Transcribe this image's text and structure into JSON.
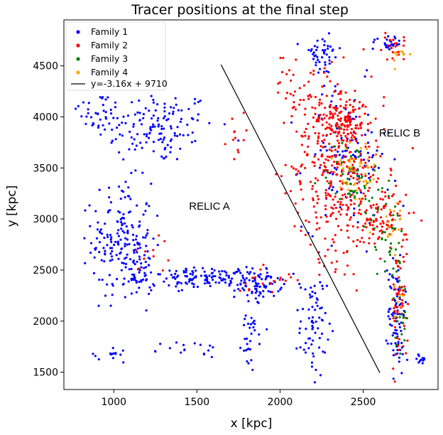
{
  "chart_data": {
    "type": "scatter",
    "title": "Tracer positions at the final step",
    "xlabel": "x [kpc]",
    "ylabel": "y [kpc]",
    "xlim": [
      700,
      2950
    ],
    "ylim": [
      1330,
      4950
    ],
    "xticks": [
      1000,
      1500,
      2000,
      2500
    ],
    "yticks": [
      1500,
      2000,
      2500,
      3000,
      3500,
      4000,
      4500
    ],
    "grid": false,
    "legend_position": "top-left",
    "series": [
      {
        "name": "Family 1",
        "color": "#0000ff"
      },
      {
        "name": "Family 2",
        "color": "#ff0000"
      },
      {
        "name": "Family 3",
        "color": "#008000"
      },
      {
        "name": "Family 4",
        "color": "#ffa500"
      }
    ],
    "fit_line": {
      "label": "y=-3.16x + 9710",
      "slope": -3.16,
      "intercept": 9710,
      "x_range": [
        1645,
        2600
      ],
      "color": "#000000"
    },
    "annotations": [
      {
        "text": "RELIC A",
        "x": 1560,
        "y": 3120
      },
      {
        "text": "RELIC B",
        "x": 2660,
        "y": 3810
      }
    ],
    "clusters": [
      {
        "series": 0,
        "n": 140,
        "cx": 1250,
        "cy": 3900,
        "sx": 180,
        "sy": 180
      },
      {
        "series": 0,
        "n": 30,
        "cx": 900,
        "cy": 4050,
        "sx": 60,
        "sy": 100
      },
      {
        "series": 0,
        "n": 180,
        "cx": 1050,
        "cy": 2800,
        "sx": 90,
        "sy": 280
      },
      {
        "series": 0,
        "n": 40,
        "cx": 1150,
        "cy": 2450,
        "sx": 50,
        "sy": 120
      },
      {
        "series": 0,
        "n": 120,
        "cx": 1550,
        "cy": 2420,
        "sx": 170,
        "sy": 50
      },
      {
        "series": 0,
        "n": 70,
        "cx": 1870,
        "cy": 2370,
        "sx": 70,
        "sy": 70
      },
      {
        "series": 0,
        "n": 35,
        "cx": 1830,
        "cy": 1950,
        "sx": 30,
        "sy": 220
      },
      {
        "series": 0,
        "n": 70,
        "cx": 2200,
        "cy": 1950,
        "sx": 40,
        "sy": 250
      },
      {
        "series": 0,
        "n": 45,
        "cx": 2250,
        "cy": 4600,
        "sx": 60,
        "sy": 100
      },
      {
        "series": 0,
        "n": 120,
        "cx": 2400,
        "cy": 3600,
        "sx": 130,
        "sy": 350
      },
      {
        "series": 0,
        "n": 80,
        "cx": 2700,
        "cy": 2100,
        "sx": 25,
        "sy": 300
      },
      {
        "series": 0,
        "n": 25,
        "cx": 2650,
        "cy": 4730,
        "sx": 50,
        "sy": 40
      },
      {
        "series": 0,
        "n": 20,
        "cx": 1450,
        "cy": 1720,
        "sx": 150,
        "sy": 40
      },
      {
        "series": 0,
        "n": 12,
        "cx": 1000,
        "cy": 1670,
        "sx": 40,
        "sy": 40
      },
      {
        "series": 0,
        "n": 15,
        "cx": 2800,
        "cy": 1620,
        "sx": 50,
        "sy": 40
      },
      {
        "series": 1,
        "n": 350,
        "cx": 2350,
        "cy": 3500,
        "sx": 140,
        "sy": 450
      },
      {
        "series": 1,
        "n": 120,
        "cx": 2350,
        "cy": 3950,
        "sx": 90,
        "sy": 120
      },
      {
        "series": 1,
        "n": 90,
        "cx": 2620,
        "cy": 3000,
        "sx": 80,
        "sy": 180
      },
      {
        "series": 1,
        "n": 60,
        "cx": 2720,
        "cy": 2150,
        "sx": 25,
        "sy": 280
      },
      {
        "series": 1,
        "n": 30,
        "cx": 2100,
        "cy": 4300,
        "sx": 60,
        "sy": 200
      },
      {
        "series": 1,
        "n": 20,
        "cx": 2680,
        "cy": 4680,
        "sx": 50,
        "sy": 60
      },
      {
        "series": 1,
        "n": 15,
        "cx": 1900,
        "cy": 2400,
        "sx": 80,
        "sy": 60
      },
      {
        "series": 1,
        "n": 10,
        "cx": 1200,
        "cy": 2700,
        "sx": 60,
        "sy": 150
      },
      {
        "series": 1,
        "n": 12,
        "cx": 1750,
        "cy": 3800,
        "sx": 50,
        "sy": 100
      },
      {
        "series": 2,
        "n": 60,
        "cx": 2450,
        "cy": 3400,
        "sx": 80,
        "sy": 200
      },
      {
        "series": 2,
        "n": 35,
        "cx": 2650,
        "cy": 2800,
        "sx": 50,
        "sy": 200
      },
      {
        "series": 2,
        "n": 20,
        "cx": 2720,
        "cy": 2150,
        "sx": 20,
        "sy": 200
      },
      {
        "series": 3,
        "n": 50,
        "cx": 2450,
        "cy": 3450,
        "sx": 70,
        "sy": 220
      },
      {
        "series": 3,
        "n": 15,
        "cx": 2700,
        "cy": 2950,
        "sx": 30,
        "sy": 150
      },
      {
        "series": 3,
        "n": 10,
        "cx": 2720,
        "cy": 4600,
        "sx": 25,
        "sy": 50
      },
      {
        "series": 3,
        "n": 6,
        "cx": 2720,
        "cy": 2150,
        "sx": 15,
        "sy": 100
      }
    ]
  }
}
